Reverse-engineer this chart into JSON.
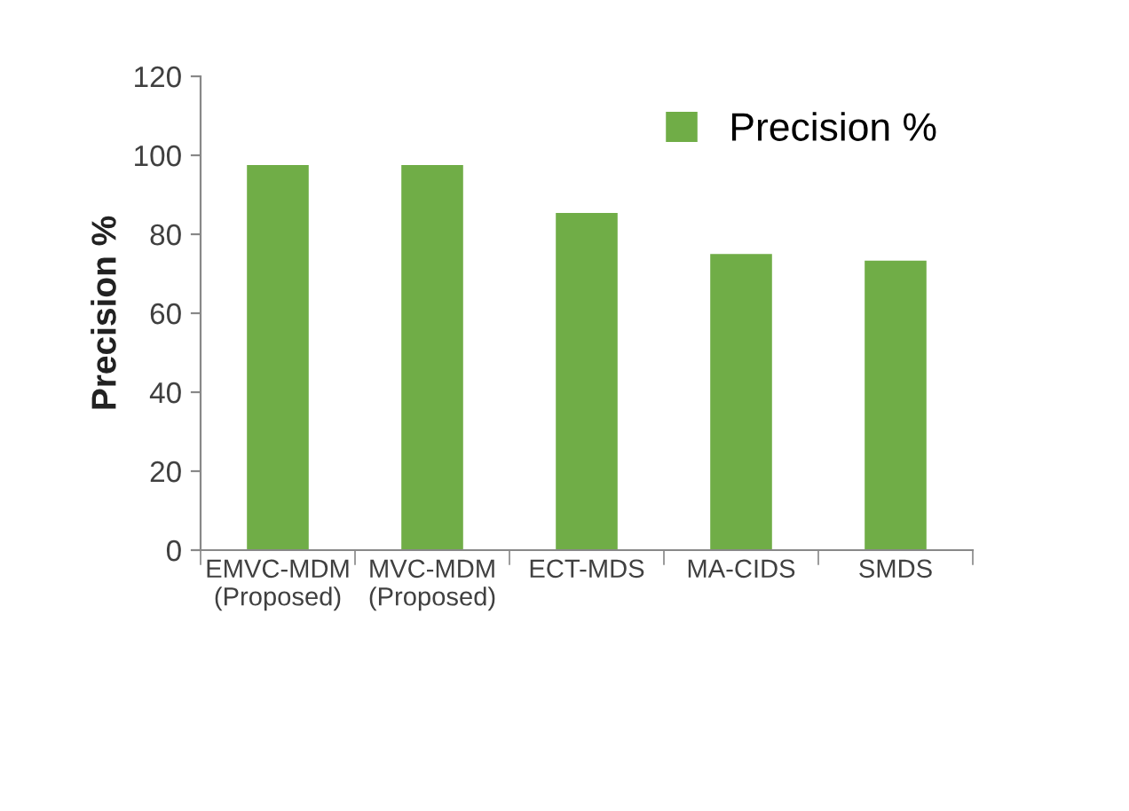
{
  "chart_data": {
    "type": "bar",
    "ylabel": "Precision %",
    "categories": [
      "EMVC-MDM\n(Proposed)",
      "MVC-MDM\n(Proposed)",
      "ECT-MDS",
      "MA-CIDS",
      "SMDS"
    ],
    "series": [
      {
        "name": "Precision %",
        "color": "#70ad47",
        "values": [
          97.5,
          97.5,
          85.4,
          75,
          73.3
        ]
      }
    ],
    "ylim": [
      0,
      120
    ],
    "yticks": [
      0,
      20,
      40,
      60,
      80,
      100,
      120
    ],
    "grid": false,
    "legend": "top right"
  }
}
